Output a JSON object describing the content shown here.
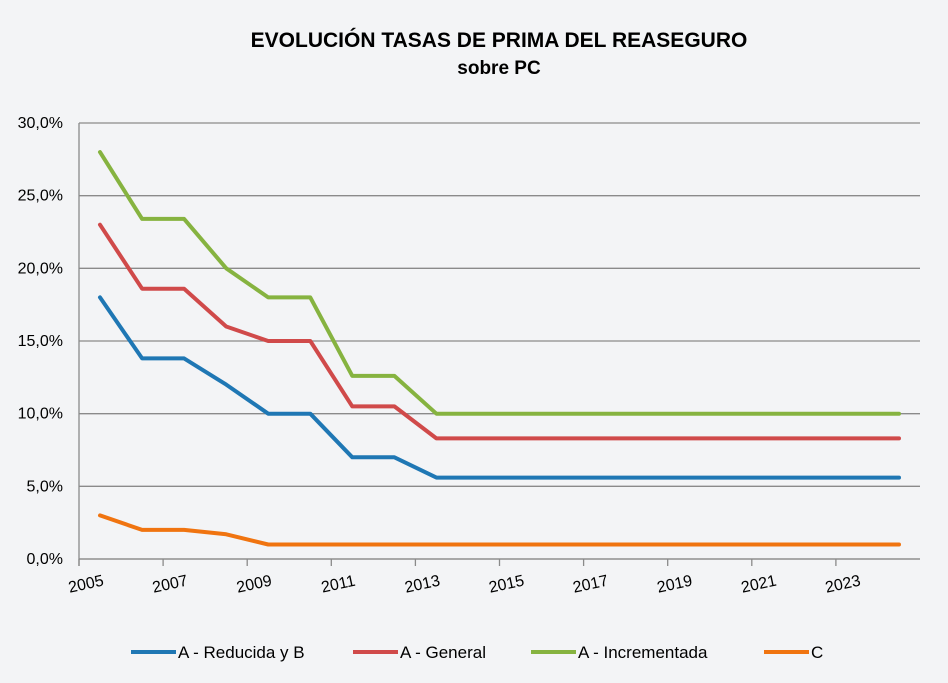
{
  "chart_data": {
    "type": "line",
    "title": "EVOLUCIÓN TASAS DE PRIMA DEL REASEGURO",
    "subtitle": "sobre PC",
    "xlabel": "",
    "ylabel": "",
    "ylim": [
      0,
      30
    ],
    "xlim": [
      2005,
      2025
    ],
    "y_ticks": [
      "0,0%",
      "5,0%",
      "10,0%",
      "15,0%",
      "20,0%",
      "25,0%",
      "30,0%"
    ],
    "x_ticks": [
      "2005",
      "2007",
      "2009",
      "2011",
      "2013",
      "2015",
      "2017",
      "2019",
      "2021",
      "2023"
    ],
    "grid": "horizontal",
    "legend_position": "bottom",
    "series": [
      {
        "name": "A - Reducida y B",
        "color": "#1f77b4",
        "points": [
          [
            2005.5,
            18.0
          ],
          [
            2006.5,
            13.8
          ],
          [
            2007.5,
            13.8
          ],
          [
            2008.5,
            12.0
          ],
          [
            2009.5,
            10.0
          ],
          [
            2010.5,
            10.0
          ],
          [
            2011.5,
            7.0
          ],
          [
            2012.5,
            7.0
          ],
          [
            2013.5,
            5.6
          ],
          [
            2014.5,
            5.6
          ],
          [
            2024.5,
            5.6
          ]
        ]
      },
      {
        "name": "A - General",
        "color": "#d04a4a",
        "points": [
          [
            2005.5,
            23.0
          ],
          [
            2006.5,
            18.6
          ],
          [
            2007.5,
            18.6
          ],
          [
            2008.5,
            16.0
          ],
          [
            2009.5,
            15.0
          ],
          [
            2010.5,
            15.0
          ],
          [
            2011.5,
            10.5
          ],
          [
            2012.5,
            10.5
          ],
          [
            2013.5,
            8.3
          ],
          [
            2014.5,
            8.3
          ],
          [
            2024.5,
            8.3
          ]
        ]
      },
      {
        "name": "A - Incrementada",
        "color": "#86b340",
        "points": [
          [
            2005.5,
            28.0
          ],
          [
            2006.5,
            23.4
          ],
          [
            2007.5,
            23.4
          ],
          [
            2008.5,
            20.0
          ],
          [
            2009.5,
            18.0
          ],
          [
            2010.5,
            18.0
          ],
          [
            2011.5,
            12.6
          ],
          [
            2012.5,
            12.6
          ],
          [
            2013.5,
            10.0
          ],
          [
            2014.5,
            10.0
          ],
          [
            2024.5,
            10.0
          ]
        ]
      },
      {
        "name": "C",
        "color": "#f07410",
        "points": [
          [
            2005.5,
            3.0
          ],
          [
            2006.5,
            2.0
          ],
          [
            2007.5,
            2.0
          ],
          [
            2008.5,
            1.7
          ],
          [
            2009.5,
            1.0
          ],
          [
            2010.5,
            1.0
          ],
          [
            2024.5,
            1.0
          ]
        ]
      }
    ]
  }
}
